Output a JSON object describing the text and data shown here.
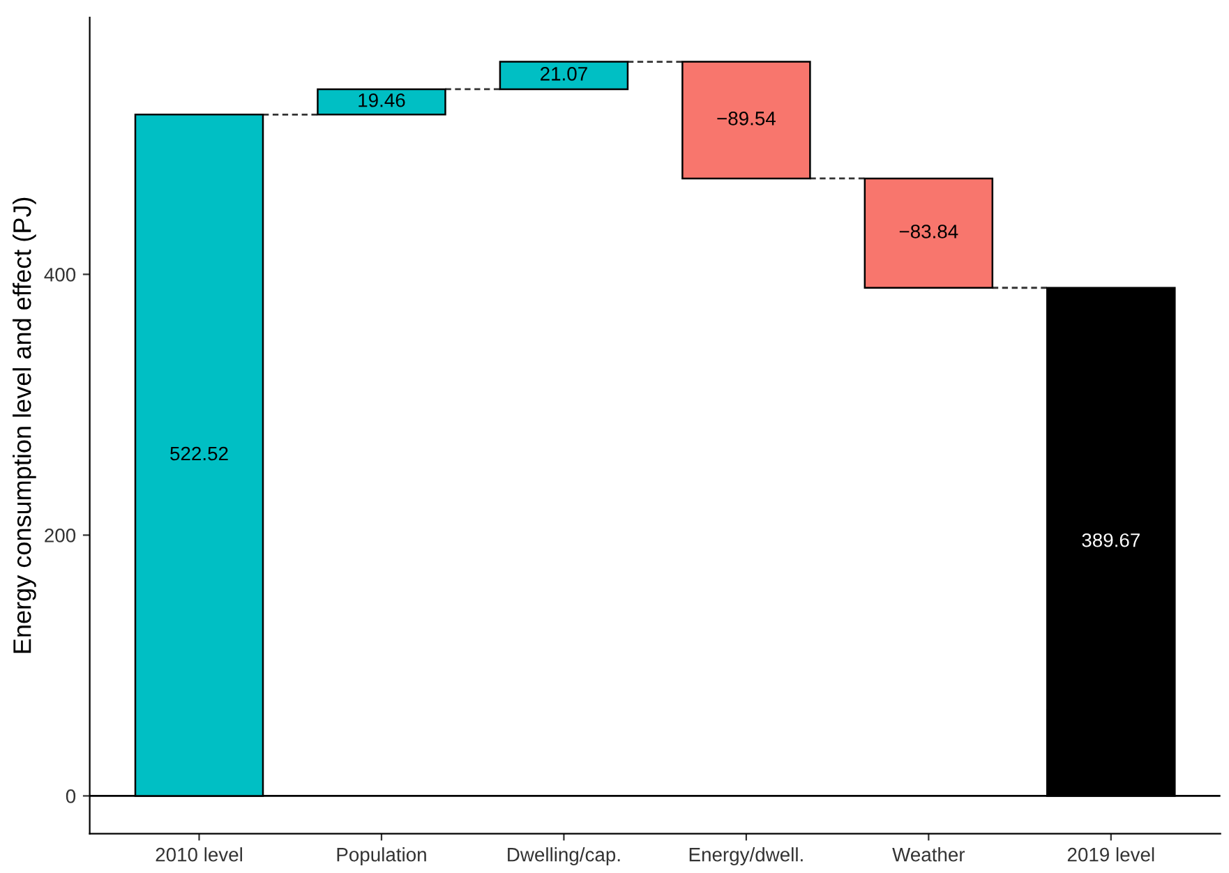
{
  "chart_data": {
    "type": "bar",
    "ylabel": "Energy consumption level and effect (PJ)",
    "categories": [
      "2010 level",
      "Population",
      "Dwelling/cap.",
      "Energy/dwell.",
      "Weather",
      "2019 level"
    ],
    "values": [
      522.52,
      19.46,
      21.07,
      -89.54,
      -83.84,
      389.67
    ],
    "base": [
      0,
      522.52,
      541.98,
      563.05,
      473.51,
      0
    ],
    "colors": [
      "#00bfc4",
      "#00bfc4",
      "#00bfc4",
      "#f8766d",
      "#f8766d",
      "#000000"
    ],
    "value_labels": [
      "522.52",
      "19.46",
      "21.07",
      "−89.54",
      "−83.84",
      "389.67"
    ],
    "ylim": [
      -29,
      597
    ],
    "yticks": [
      0,
      200,
      400
    ],
    "ref_lines": [
      {
        "axis": "y",
        "value": 0,
        "color": "#000000"
      }
    ],
    "grid": false,
    "legend": false
  }
}
